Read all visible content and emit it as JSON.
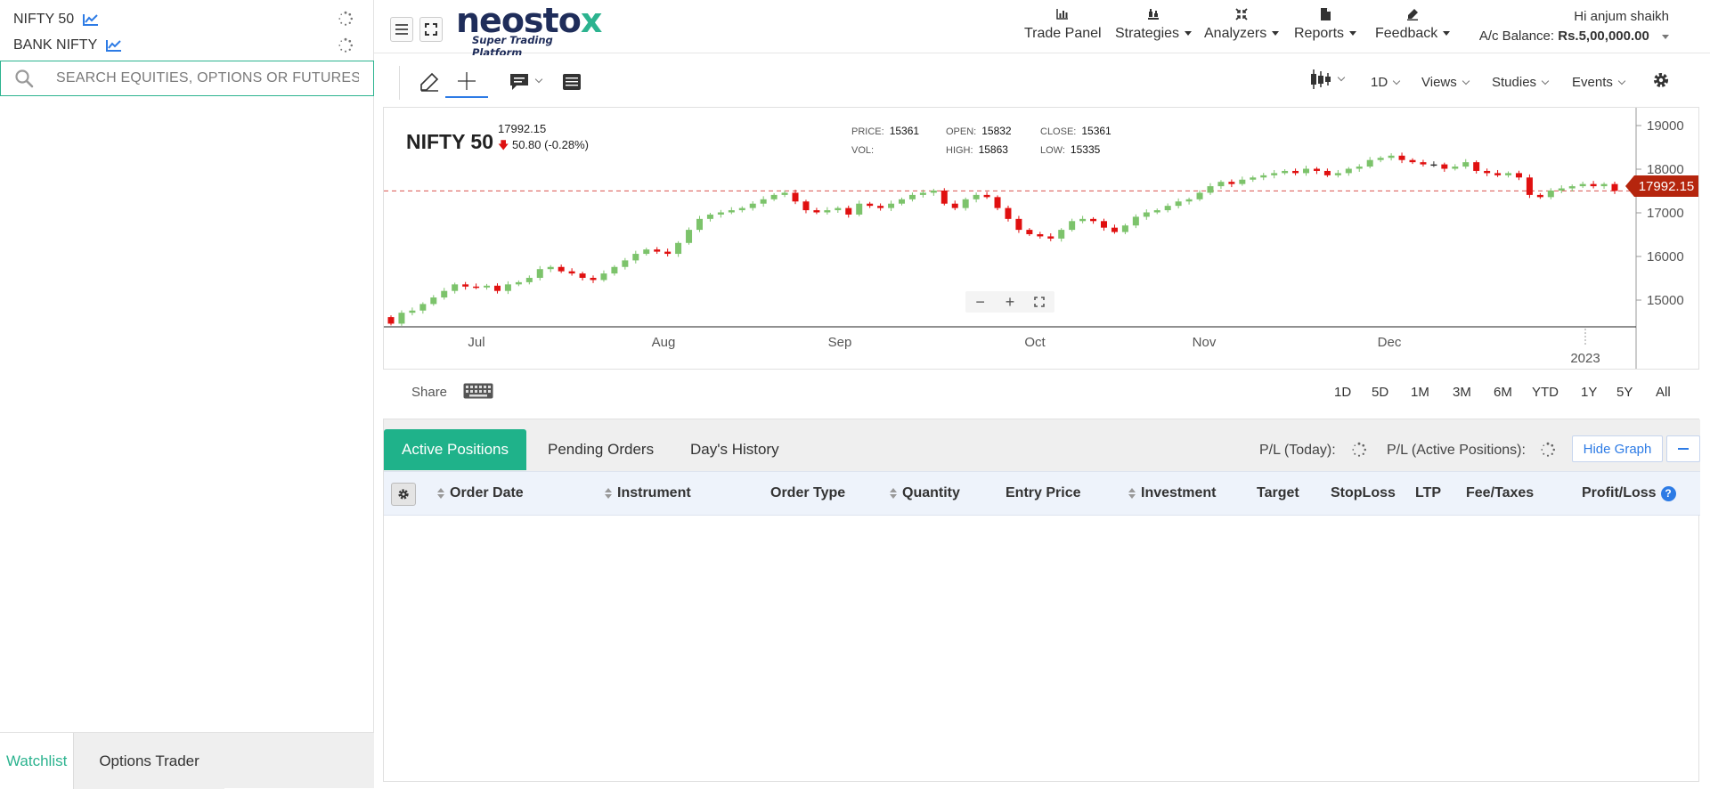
{
  "watchlist": {
    "items": [
      {
        "label": "NIFTY 50"
      },
      {
        "label": "BANK NIFTY"
      }
    ],
    "search_placeholder": "SEARCH EQUITIES, OPTIONS OR FUTURES",
    "bottom_tabs": [
      {
        "label": "Watchlist",
        "active": true
      },
      {
        "label": "Options Trader",
        "active": false
      }
    ]
  },
  "header": {
    "logo_main": "neostox",
    "logo_sub": "Super Trading Platform",
    "nav": [
      {
        "label": "Trade Panel",
        "icon": "bar-chart-icon",
        "dropdown": false
      },
      {
        "label": "Strategies",
        "icon": "chess-icon",
        "dropdown": true
      },
      {
        "label": "Analyzers",
        "icon": "arrows-in-icon",
        "dropdown": true
      },
      {
        "label": "Reports",
        "icon": "document-icon",
        "dropdown": true
      },
      {
        "label": "Feedback",
        "icon": "pencil-icon",
        "dropdown": true
      }
    ],
    "greeting": "Hi anjum shaikh",
    "balance_label": "A/c Balance:",
    "balance_value": "Rs.5,00,000.00"
  },
  "chart_toolbar": {
    "interval": "1D",
    "views": "Views",
    "studies": "Studies",
    "events": "Events"
  },
  "chart_info": {
    "symbol": "NIFTY 50",
    "last": "17992.15",
    "change": "50.80 (-0.28%)",
    "price_label": "PRICE:",
    "price": "15361",
    "open_label": "OPEN:",
    "open": "15832",
    "close_label": "CLOSE:",
    "close": "15361",
    "vol_label": "VOL:",
    "vol": "",
    "high_label": "HIGH:",
    "high": "15863",
    "low_label": "LOW:",
    "low": "15335",
    "current_price_tag": "17992.15",
    "zoom_out": "−",
    "zoom_in": "+"
  },
  "chart_data": {
    "type": "candlestick",
    "ylim": [
      14600,
      19400
    ],
    "y_ticks": [
      15000,
      16000,
      17000,
      18000,
      19000
    ],
    "x_labels": [
      "Jul",
      "Aug",
      "Sep",
      "Oct",
      "Nov",
      "Dec"
    ],
    "x_year_label": "2023",
    "current_price": 17992.15,
    "closes": [
      14950,
      15200,
      15250,
      15400,
      15550,
      15700,
      15850,
      15800,
      15780,
      15820,
      15700,
      15850,
      15900,
      16000,
      16200,
      16250,
      16150,
      16100,
      16000,
      15950,
      16100,
      16250,
      16400,
      16550,
      16650,
      16600,
      16550,
      16800,
      17100,
      17350,
      17450,
      17500,
      17550,
      17600,
      17700,
      17800,
      17900,
      17950,
      17750,
      17550,
      17500,
      17550,
      17600,
      17450,
      17700,
      17650,
      17600,
      17700,
      17800,
      17900,
      17950,
      18000,
      17700,
      17600,
      17800,
      17900,
      17850,
      17600,
      17350,
      17100,
      17000,
      16950,
      16900,
      17100,
      17300,
      17350,
      17300,
      17150,
      17050,
      17200,
      17400,
      17500,
      17550,
      17650,
      17750,
      17800,
      17950,
      18100,
      18200,
      18150,
      18250,
      18300,
      18350,
      18400,
      18450,
      18400,
      18500,
      18450,
      18350,
      18400,
      18500,
      18550,
      18700,
      18750,
      18800,
      18700,
      18650,
      18600,
      18600,
      18500,
      18550,
      18650,
      18450,
      18400,
      18350,
      18400,
      18300,
      17900,
      17850,
      18000,
      18050,
      18100,
      18150,
      18100,
      18150,
      17992
    ]
  },
  "range_bar": {
    "share": "Share",
    "ranges": [
      "1D",
      "5D",
      "1M",
      "3M",
      "6M",
      "YTD",
      "1Y",
      "5Y",
      "All"
    ]
  },
  "positions": {
    "tabs": [
      {
        "label": "Active Positions",
        "active": true
      },
      {
        "label": "Pending Orders",
        "active": false
      },
      {
        "label": "Day's History",
        "active": false
      }
    ],
    "pl_today_label": "P/L (Today):",
    "pl_active_label": "P/L (Active Positions):",
    "hide_graph": "Hide Graph",
    "columns": [
      {
        "label": "Order Date",
        "sortable": true
      },
      {
        "label": "Instrument",
        "sortable": true
      },
      {
        "label": "Order Type",
        "sortable": false
      },
      {
        "label": "Quantity",
        "sortable": true
      },
      {
        "label": "Entry Price",
        "sortable": false
      },
      {
        "label": "Investment",
        "sortable": true
      },
      {
        "label": "Target",
        "sortable": false
      },
      {
        "label": "StopLoss",
        "sortable": false
      },
      {
        "label": "LTP",
        "sortable": false
      },
      {
        "label": "Fee/Taxes",
        "sortable": false
      },
      {
        "label": "Profit/Loss",
        "sortable": false
      }
    ],
    "help_glyph": "?"
  },
  "colors": {
    "accent": "#1fb28a",
    "up_candle": "#7cc36b",
    "down_candle": "#e01010",
    "price_tag": "#b5250d",
    "link": "#2d7be5"
  }
}
